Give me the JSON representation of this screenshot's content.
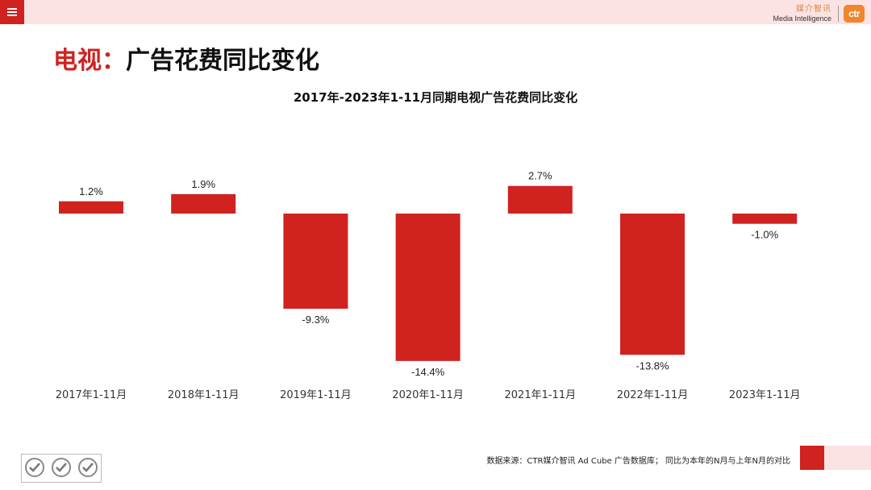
{
  "header": {
    "logo_cn": "媒介智讯",
    "logo_en": "Media Intelligence",
    "logo_mark": "ctr"
  },
  "page": {
    "title_accent": "电视：",
    "title_main": "广告花费同比变化"
  },
  "chart_data": {
    "type": "bar",
    "title": "2017年-2023年1-11月同期电视广告花费同比变化",
    "categories": [
      "2017年1-11月",
      "2018年1-11月",
      "2019年1-11月",
      "2020年1-11月",
      "2021年1-11月",
      "2022年1-11月",
      "2023年1-11月"
    ],
    "values": [
      1.2,
      1.9,
      -9.3,
      -14.4,
      2.7,
      -13.8,
      -1.0
    ],
    "value_labels": [
      "1.2%",
      "1.9%",
      "-9.3%",
      "-14.4%",
      "2.7%",
      "-13.8%",
      "-1.0%"
    ],
    "ylim": [
      -16,
      6
    ],
    "grid": false,
    "bar_color": "#d0221f"
  },
  "footer": {
    "source_note": "数据来源：CTR媒介智讯 Ad Cube 广告数据库；  同比为本年的N月与上年N月的对比"
  }
}
